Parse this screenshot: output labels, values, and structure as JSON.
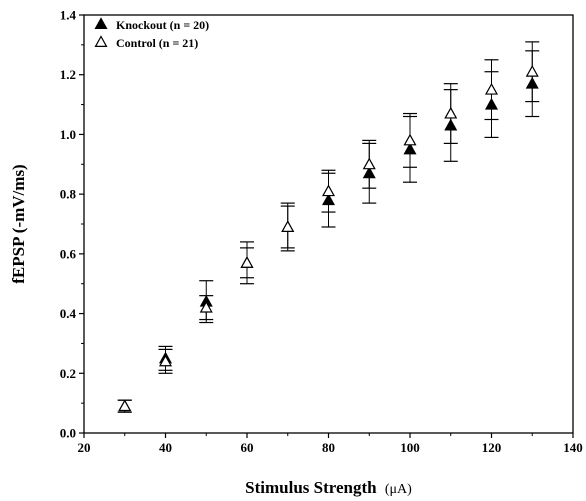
{
  "chart_data": {
    "type": "scatter",
    "xlabel": "Stimulus Strength",
    "xlabel_unit": "(μA)",
    "ylabel": "fEPSP (-mV/ms)",
    "xlim": [
      20,
      140
    ],
    "ylim": [
      0.0,
      1.4
    ],
    "x_ticks": [
      "20",
      "40",
      "60",
      "80",
      "100",
      "120",
      "140"
    ],
    "y_ticks": [
      "0.0",
      "0.2",
      "0.4",
      "0.6",
      "0.8",
      "1.0",
      "1.2",
      "1.4"
    ],
    "grid": false,
    "legend_position": "top-left",
    "series": [
      {
        "name": "Knockout (n = 20)",
        "marker": "filled-triangle",
        "color": "#000000",
        "x": [
          30,
          40,
          50,
          60,
          70,
          80,
          90,
          100,
          110,
          120,
          130
        ],
        "y": [
          0.09,
          0.25,
          0.44,
          0.57,
          0.69,
          0.78,
          0.87,
          0.95,
          1.03,
          1.1,
          1.17
        ],
        "err": [
          0.02,
          0.04,
          0.07,
          0.05,
          0.07,
          0.09,
          0.1,
          0.11,
          0.12,
          0.11,
          0.11
        ]
      },
      {
        "name": "Control (n = 21)",
        "marker": "open-triangle",
        "color": "#000000",
        "x": [
          30,
          40,
          50,
          60,
          70,
          80,
          90,
          100,
          110,
          120,
          130
        ],
        "y": [
          0.09,
          0.24,
          0.42,
          0.57,
          0.69,
          0.81,
          0.9,
          0.98,
          1.07,
          1.15,
          1.21
        ],
        "err": [
          0.02,
          0.04,
          0.04,
          0.07,
          0.08,
          0.07,
          0.08,
          0.09,
          0.1,
          0.1,
          0.1
        ]
      }
    ]
  }
}
